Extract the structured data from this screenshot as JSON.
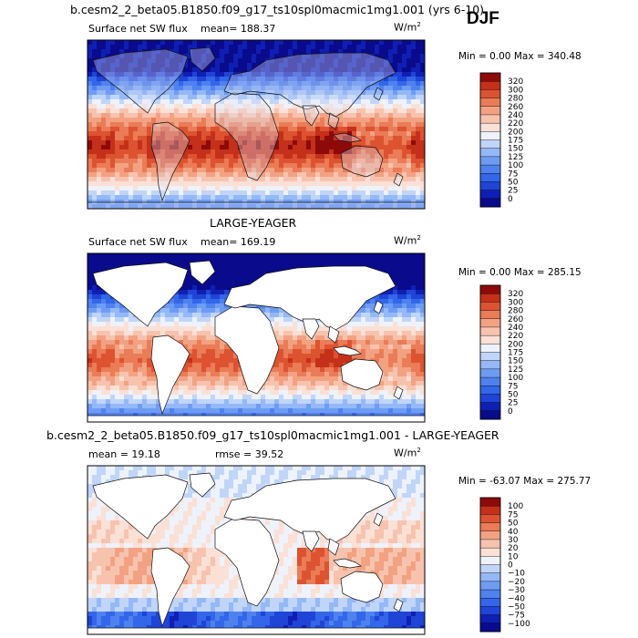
{
  "season": "DJF",
  "chart_data": [
    {
      "type": "heatmap",
      "title": "b.cesm2_2_beta05.B1850.f09_g17_ts10spl0macmic1mg1.001 (yrs 6-10)",
      "variable": "Surface net SW flux",
      "stat_text": "mean=  188.37",
      "units": "W/m",
      "units_exp": "2",
      "minmax_text": "Min =   0.00 Max = 340.48",
      "levels": [
        0,
        25,
        50,
        75,
        100,
        125,
        150,
        175,
        200,
        220,
        240,
        260,
        280,
        300,
        320
      ],
      "level_labels": [
        "320",
        "300",
        "280",
        "260",
        "240",
        "220",
        "200",
        "175",
        "150",
        "125",
        "100",
        "75",
        "50",
        "25",
        "0"
      ],
      "colors": [
        "#0a0a8c",
        "#0f1fb4",
        "#1f44d6",
        "#3366e8",
        "#4f82ee",
        "#6f9cf3",
        "#95b8f6",
        "#c0d5f8",
        "#eef2fb",
        "#fbe0d6",
        "#f7c3ae",
        "#f2a283",
        "#ea7c57",
        "#dd5331",
        "#c4301a",
        "#8e0a0a"
      ]
    },
    {
      "type": "heatmap",
      "title": "LARGE-YEAGER",
      "variable": "Surface net SW flux",
      "stat_text": "mean=  169.19",
      "units": "W/m",
      "units_exp": "2",
      "minmax_text": "Min =   0.00 Max = 285.15",
      "levels": [
        0,
        25,
        50,
        75,
        100,
        125,
        150,
        175,
        200,
        220,
        240,
        260,
        280,
        300,
        320
      ],
      "level_labels": [
        "320",
        "300",
        "280",
        "260",
        "240",
        "220",
        "200",
        "175",
        "150",
        "125",
        "100",
        "75",
        "50",
        "25",
        "0"
      ],
      "colors": [
        "#0a0a8c",
        "#0f1fb4",
        "#1f44d6",
        "#3366e8",
        "#4f82ee",
        "#6f9cf3",
        "#95b8f6",
        "#c0d5f8",
        "#eef2fb",
        "#fbe0d6",
        "#f7c3ae",
        "#f2a283",
        "#ea7c57",
        "#dd5331",
        "#c4301a",
        "#8e0a0a"
      ]
    },
    {
      "type": "heatmap",
      "title": "b.cesm2_2_beta05.B1850.f09_g17_ts10spl0macmic1mg1.001 - LARGE-YEAGER",
      "mean_text": "mean =   19.18",
      "rmse_text": "rmse =   39.52",
      "units": "W/m",
      "units_exp": "2",
      "minmax_text": "Min = -63.07 Max = 275.77",
      "levels": [
        -100,
        -75,
        -50,
        -40,
        -30,
        -20,
        -10,
        0,
        10,
        20,
        30,
        40,
        50,
        75,
        100
      ],
      "level_labels": [
        "100",
        "75",
        "50",
        "40",
        "30",
        "20",
        "10",
        "0",
        "−10",
        "−20",
        "−30",
        "−40",
        "−50",
        "−75",
        "−100"
      ],
      "colors": [
        "#0a0a8c",
        "#0f1fb4",
        "#1f44d6",
        "#3366e8",
        "#4f82ee",
        "#6f9cf3",
        "#95b8f6",
        "#c0d5f8",
        "#eef2fb",
        "#fbe0d6",
        "#f7c3ae",
        "#f2a283",
        "#ea7c57",
        "#dd5331",
        "#c4301a",
        "#8e0a0a"
      ]
    }
  ]
}
